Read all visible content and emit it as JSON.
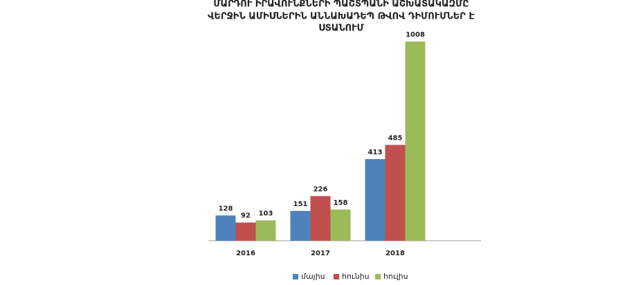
{
  "chart_data": {
    "type": "bar",
    "title": [
      "ՄԱՐԴՈՒ ԻՐԱՎՈՒՆՔՆԵՐԻ ՊԱՇՏՊԱՆԻ ԱՇԽԱՏԱԿԱԶՄԸ",
      "ՎԵՐՋԻՆ ԱՄԻՍՆԵՐԻՆ ԱՆՆԱԽԱԴԵՊ ԹՎՈՎ ԴԻՄՈՒՄՆԵՐ Է",
      "ՍՏԱՆՈՒՄ"
    ],
    "categories": [
      "2016",
      "2017",
      "2018"
    ],
    "series": [
      {
        "name": "մայիս",
        "color": "#4f81bd",
        "values": [
          128,
          151,
          413
        ]
      },
      {
        "name": "հունիս",
        "color": "#c0504d",
        "values": [
          92,
          226,
          485
        ]
      },
      {
        "name": "հուլիս",
        "color": "#9bbb59",
        "values": [
          103,
          158,
          1008
        ]
      }
    ],
    "legend": "bottom"
  }
}
